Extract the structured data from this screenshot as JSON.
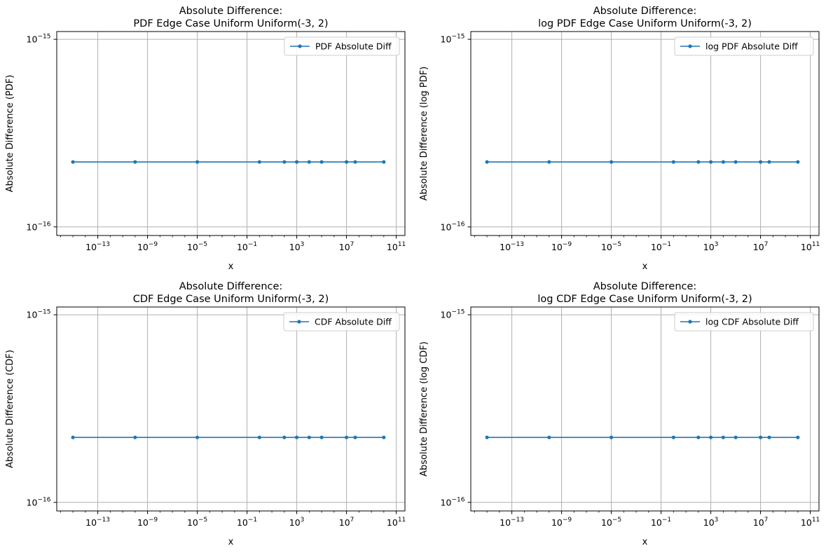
{
  "chart_data": [
    {
      "type": "line",
      "title_line1": "Absolute Difference:",
      "title_line2": "PDF Edge Case Uniform Uniform(-3, 2)",
      "xlabel": "x",
      "ylabel": "Absolute Difference (PDF)",
      "xscale": "log",
      "yscale": "log",
      "xlim": [
        5e-17,
        500000000000.0
      ],
      "ylim": [
        9e-17,
        1.1e-15
      ],
      "xticks": [
        {
          "exp": -13,
          "label": "−13"
        },
        {
          "exp": -9,
          "label": "−9"
        },
        {
          "exp": -5,
          "label": "−5"
        },
        {
          "exp": -1,
          "label": "−1"
        },
        {
          "exp": 3,
          "label": "3"
        },
        {
          "exp": 7,
          "label": "7"
        },
        {
          "exp": 11,
          "label": "11"
        }
      ],
      "yticks": [
        {
          "exp": -16,
          "label": "−16"
        },
        {
          "exp": -15,
          "label": "−15"
        }
      ],
      "grid": true,
      "legend_position": "top-right",
      "series": [
        {
          "name": "PDF Absolute Diff",
          "x": [
            1e-15,
            1e-10,
            1e-05,
            1,
            100,
            1000,
            10000,
            100000,
            10000000,
            50000000,
            10000000000
          ],
          "y": [
            2.22e-16,
            2.22e-16,
            2.22e-16,
            2.22e-16,
            2.22e-16,
            2.22e-16,
            2.22e-16,
            2.22e-16,
            2.22e-16,
            2.22e-16,
            2.22e-16
          ]
        }
      ]
    },
    {
      "type": "line",
      "title_line1": "Absolute Difference:",
      "title_line2": "log PDF Edge Case Uniform Uniform(-3, 2)",
      "xlabel": "x",
      "ylabel": "Absolute Difference (log PDF)",
      "xscale": "log",
      "yscale": "log",
      "xlim": [
        5e-17,
        500000000000.0
      ],
      "ylim": [
        9e-17,
        1.1e-15
      ],
      "xticks": [
        {
          "exp": -13,
          "label": "−13"
        },
        {
          "exp": -9,
          "label": "−9"
        },
        {
          "exp": -5,
          "label": "−5"
        },
        {
          "exp": -1,
          "label": "−1"
        },
        {
          "exp": 3,
          "label": "3"
        },
        {
          "exp": 7,
          "label": "7"
        },
        {
          "exp": 11,
          "label": "11"
        }
      ],
      "yticks": [
        {
          "exp": -16,
          "label": "−16"
        },
        {
          "exp": -15,
          "label": "−15"
        }
      ],
      "grid": true,
      "legend_position": "top-right",
      "series": [
        {
          "name": "log PDF Absolute Diff",
          "x": [
            1e-15,
            1e-10,
            1e-05,
            1,
            100,
            1000,
            10000,
            100000,
            10000000,
            50000000,
            10000000000
          ],
          "y": [
            2.22e-16,
            2.22e-16,
            2.22e-16,
            2.22e-16,
            2.22e-16,
            2.22e-16,
            2.22e-16,
            2.22e-16,
            2.22e-16,
            2.22e-16,
            2.22e-16
          ]
        }
      ]
    },
    {
      "type": "line",
      "title_line1": "Absolute Difference:",
      "title_line2": "CDF Edge Case Uniform Uniform(-3, 2)",
      "xlabel": "x",
      "ylabel": "Absolute Difference (CDF)",
      "xscale": "log",
      "yscale": "log",
      "xlim": [
        5e-17,
        500000000000.0
      ],
      "ylim": [
        9e-17,
        1.1e-15
      ],
      "xticks": [
        {
          "exp": -13,
          "label": "−13"
        },
        {
          "exp": -9,
          "label": "−9"
        },
        {
          "exp": -5,
          "label": "−5"
        },
        {
          "exp": -1,
          "label": "−1"
        },
        {
          "exp": 3,
          "label": "3"
        },
        {
          "exp": 7,
          "label": "7"
        },
        {
          "exp": 11,
          "label": "11"
        }
      ],
      "yticks": [
        {
          "exp": -16,
          "label": "−16"
        },
        {
          "exp": -15,
          "label": "−15"
        }
      ],
      "grid": true,
      "legend_position": "top-right",
      "series": [
        {
          "name": "CDF Absolute Diff",
          "x": [
            1e-15,
            1e-10,
            1e-05,
            1,
            100,
            1000,
            10000,
            100000,
            10000000,
            50000000,
            10000000000
          ],
          "y": [
            2.22e-16,
            2.22e-16,
            2.22e-16,
            2.22e-16,
            2.22e-16,
            2.22e-16,
            2.22e-16,
            2.22e-16,
            2.22e-16,
            2.22e-16,
            2.22e-16
          ]
        }
      ]
    },
    {
      "type": "line",
      "title_line1": "Absolute Difference:",
      "title_line2": "log CDF Edge Case Uniform Uniform(-3, 2)",
      "xlabel": "x",
      "ylabel": "Absolute Difference (log CDF)",
      "xscale": "log",
      "yscale": "log",
      "xlim": [
        5e-17,
        500000000000.0
      ],
      "ylim": [
        9e-17,
        1.1e-15
      ],
      "xticks": [
        {
          "exp": -13,
          "label": "−13"
        },
        {
          "exp": -9,
          "label": "−9"
        },
        {
          "exp": -5,
          "label": "−5"
        },
        {
          "exp": -1,
          "label": "−1"
        },
        {
          "exp": 3,
          "label": "3"
        },
        {
          "exp": 7,
          "label": "7"
        },
        {
          "exp": 11,
          "label": "11"
        }
      ],
      "yticks": [
        {
          "exp": -16,
          "label": "−16"
        },
        {
          "exp": -15,
          "label": "−15"
        }
      ],
      "grid": true,
      "legend_position": "top-right",
      "series": [
        {
          "name": "log CDF Absolute Diff",
          "x": [
            1e-15,
            1e-10,
            1e-05,
            1,
            100,
            1000,
            10000,
            100000,
            10000000,
            50000000,
            10000000000
          ],
          "y": [
            2.22e-16,
            2.22e-16,
            2.22e-16,
            2.22e-16,
            2.22e-16,
            2.22e-16,
            2.22e-16,
            2.22e-16,
            2.22e-16,
            2.22e-16,
            2.22e-16
          ]
        }
      ]
    }
  ],
  "colors": {
    "series": "#1f77b4",
    "grid": "#b0b0b0",
    "axis": "#000000",
    "legend_border": "#cccccc"
  }
}
